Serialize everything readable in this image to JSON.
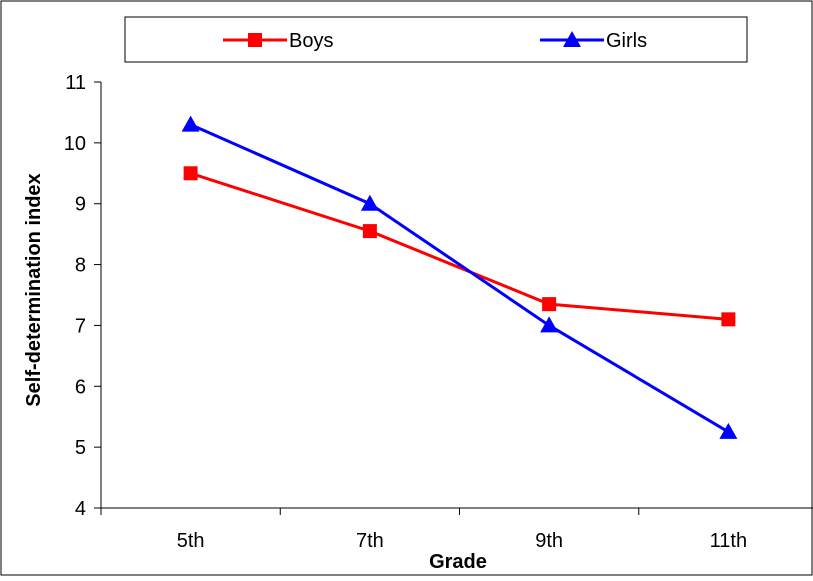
{
  "chart_data": {
    "type": "line",
    "title": "",
    "xlabel": "Grade",
    "ylabel": "Self-determination index",
    "categories": [
      "5th",
      "7th",
      "9th",
      "11th"
    ],
    "ylim": [
      4,
      11
    ],
    "yticks": [
      "4",
      "5",
      "6",
      "7",
      "8",
      "9",
      "10",
      "11"
    ],
    "grid": false,
    "legend_position": "top",
    "series": [
      {
        "name": "Boys",
        "values": [
          9.5,
          8.55,
          7.35,
          7.1
        ],
        "color": "#ff0000",
        "marker": "square"
      },
      {
        "name": "Girls",
        "values": [
          10.3,
          9.0,
          7.0,
          5.25
        ],
        "color": "#0000ff",
        "marker": "triangle"
      }
    ]
  }
}
